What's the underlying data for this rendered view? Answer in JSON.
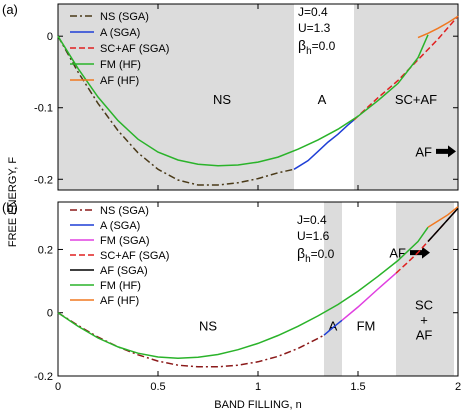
{
  "ylabel": "FREE ENERGY, F",
  "xlabel": "BAND FILLING, n",
  "colors": {
    "shade": "#dcdcdc",
    "NS": "#4a3a18",
    "NS_b": "#8b1a1a",
    "A": "#1f3fd6",
    "FM_SGA": "#e040e0",
    "SC_AF": "#e02020",
    "AF_SGA": "#000000",
    "FM_HF": "#2ab32a",
    "AF_HF": "#f07820"
  },
  "chart_data": [
    {
      "type": "line",
      "panel_label": "(a)",
      "xlim": [
        0,
        2
      ],
      "ylim": [
        -0.215,
        0.045
      ],
      "yticks": [
        0,
        -0.1,
        -0.2
      ],
      "ytick_labels": [
        "0",
        "-0.1",
        "-0.2"
      ],
      "params": [
        "J=0.4",
        "U=1.3"
      ],
      "beta_label": "β",
      "beta_sub": "h",
      "beta_value": "=0.0",
      "legend": [
        "NS (SGA)",
        "A (SGA)",
        "SC+AF (SGA)",
        "FM (HF)",
        "AF (HF)"
      ],
      "shaded_regions": [
        [
          0,
          1.18
        ],
        [
          1.48,
          2
        ]
      ],
      "region_labels": [
        {
          "text": "NS",
          "x": 0.82,
          "y": -0.088
        },
        {
          "text": "A",
          "x": 1.32,
          "y": -0.088
        },
        {
          "text": "SC+AF",
          "x": 1.79,
          "y": -0.088
        }
      ],
      "arrow_label": {
        "text": "AF",
        "x": 1.96,
        "y": -0.161
      },
      "series": [
        {
          "name": "NS (SGA)",
          "style": "dashdot",
          "color": "NS",
          "x": [
            0,
            0.1,
            0.2,
            0.3,
            0.4,
            0.5,
            0.6,
            0.7,
            0.8,
            0.9,
            1.0,
            1.1,
            1.18
          ],
          "y": [
            0,
            -0.05,
            -0.094,
            -0.132,
            -0.163,
            -0.186,
            -0.201,
            -0.208,
            -0.208,
            -0.205,
            -0.199,
            -0.191,
            -0.186
          ]
        },
        {
          "name": "A (SGA)",
          "style": "solid",
          "color": "A",
          "x": [
            1.18,
            1.25,
            1.3,
            1.35,
            1.4,
            1.45,
            1.48
          ],
          "y": [
            -0.186,
            -0.174,
            -0.161,
            -0.148,
            -0.137,
            -0.124,
            -0.117
          ]
        },
        {
          "name": "SC+AF (SGA)",
          "style": "dashed",
          "color": "SC_AF",
          "x": [
            1.48,
            1.6,
            1.7,
            1.8,
            1.9,
            2.0
          ],
          "y": [
            -0.117,
            -0.086,
            -0.062,
            -0.033,
            -0.004,
            0.028
          ]
        },
        {
          "name": "FM (HF)",
          "style": "solid",
          "color": "FM_HF",
          "x": [
            0,
            0.1,
            0.2,
            0.3,
            0.4,
            0.5,
            0.6,
            0.7,
            0.8,
            0.9,
            1.0,
            1.1,
            1.2,
            1.3,
            1.4,
            1.5,
            1.6,
            1.7,
            1.8,
            1.85
          ],
          "y": [
            0,
            -0.045,
            -0.085,
            -0.118,
            -0.144,
            -0.162,
            -0.173,
            -0.179,
            -0.181,
            -0.18,
            -0.176,
            -0.169,
            -0.158,
            -0.145,
            -0.13,
            -0.112,
            -0.09,
            -0.066,
            -0.03,
            0.002
          ]
        },
        {
          "name": "AF (HF)",
          "style": "solid",
          "color": "AF_HF",
          "x": [
            1.8,
            1.85,
            1.9,
            1.95,
            2.0
          ],
          "y": [
            -0.002,
            0.004,
            0.011,
            0.019,
            0.028
          ]
        }
      ]
    },
    {
      "type": "line",
      "panel_label": "(b)",
      "xlim": [
        0,
        2
      ],
      "ylim": [
        -0.2,
        0.35
      ],
      "xticks": [
        0,
        0.5,
        1,
        1.5,
        2
      ],
      "xtick_labels": [
        "0",
        "0.5",
        "1",
        "1.5",
        "2"
      ],
      "yticks": [
        0.2,
        0,
        -0.2
      ],
      "ytick_labels": [
        "0.2",
        "0",
        "-0.2"
      ],
      "params": [
        "J=0.4",
        "U=1.6"
      ],
      "beta_label": "β",
      "beta_sub": "h",
      "beta_value": "=0.0",
      "legend": [
        "NS (SGA)",
        "A (SGA)",
        "FM (SGA)",
        "SC+AF (SGA)",
        "AF (SGA)",
        "FM (HF)",
        "AF (HF)"
      ],
      "shaded_regions": [
        [
          1.33,
          1.42
        ],
        [
          1.69,
          1.98
        ]
      ],
      "region_labels": [
        {
          "text": "NS",
          "x": 0.75,
          "y": -0.04
        },
        {
          "text": "A",
          "x": 1.375,
          "y": -0.04
        },
        {
          "text": "FM",
          "x": 1.54,
          "y": -0.04
        }
      ],
      "region_stack": {
        "lines": [
          "SC",
          "+",
          "AF"
        ],
        "x": 1.83,
        "y": 0.01
      },
      "arrow_label": {
        "text": "AF",
        "x": 1.83,
        "y": 0.19
      },
      "series": [
        {
          "name": "NS (SGA)",
          "style": "dashdot",
          "color": "NS_b",
          "x": [
            0,
            0.1,
            0.2,
            0.3,
            0.4,
            0.5,
            0.6,
            0.7,
            0.8,
            0.9,
            1.0,
            1.1,
            1.2,
            1.3,
            1.33
          ],
          "y": [
            0,
            -0.04,
            -0.077,
            -0.108,
            -0.133,
            -0.153,
            -0.166,
            -0.171,
            -0.171,
            -0.166,
            -0.155,
            -0.138,
            -0.113,
            -0.081,
            -0.071
          ]
        },
        {
          "name": "A (SGA)",
          "style": "solid",
          "color": "A",
          "x": [
            1.33,
            1.36,
            1.39,
            1.42
          ],
          "y": [
            -0.071,
            -0.055,
            -0.039,
            -0.024
          ]
        },
        {
          "name": "FM (SGA)",
          "style": "solid",
          "color": "FM_SGA",
          "x": [
            1.42,
            1.5,
            1.6,
            1.69
          ],
          "y": [
            -0.024,
            0.018,
            0.075,
            0.125
          ]
        },
        {
          "name": "SC+AF (SGA)",
          "style": "dashed",
          "color": "SC_AF",
          "x": [
            1.69,
            1.75,
            1.8,
            1.85,
            1.9,
            1.95,
            2.0
          ],
          "y": [
            0.125,
            0.16,
            0.19,
            0.225,
            0.26,
            0.295,
            0.33
          ]
        },
        {
          "name": "AF (SGA)",
          "style": "solid",
          "color": "AF_SGA",
          "x": [
            1.85,
            1.9,
            1.95,
            2.0
          ],
          "y": [
            0.225,
            0.26,
            0.295,
            0.33
          ]
        },
        {
          "name": "FM (HF)",
          "style": "solid",
          "color": "FM_HF",
          "x": [
            0,
            0.1,
            0.2,
            0.3,
            0.4,
            0.5,
            0.6,
            0.7,
            0.8,
            0.9,
            1.0,
            1.1,
            1.2,
            1.3,
            1.4,
            1.5,
            1.6,
            1.7,
            1.8,
            1.85
          ],
          "y": [
            0,
            -0.043,
            -0.08,
            -0.108,
            -0.128,
            -0.14,
            -0.144,
            -0.141,
            -0.132,
            -0.117,
            -0.097,
            -0.072,
            -0.043,
            -0.01,
            0.026,
            0.068,
            0.115,
            0.165,
            0.225,
            0.27
          ]
        },
        {
          "name": "AF (HF)",
          "style": "solid",
          "color": "AF_HF",
          "x": [
            1.85,
            1.9,
            1.95,
            2.0
          ],
          "y": [
            0.27,
            0.29,
            0.31,
            0.335
          ]
        }
      ]
    }
  ]
}
